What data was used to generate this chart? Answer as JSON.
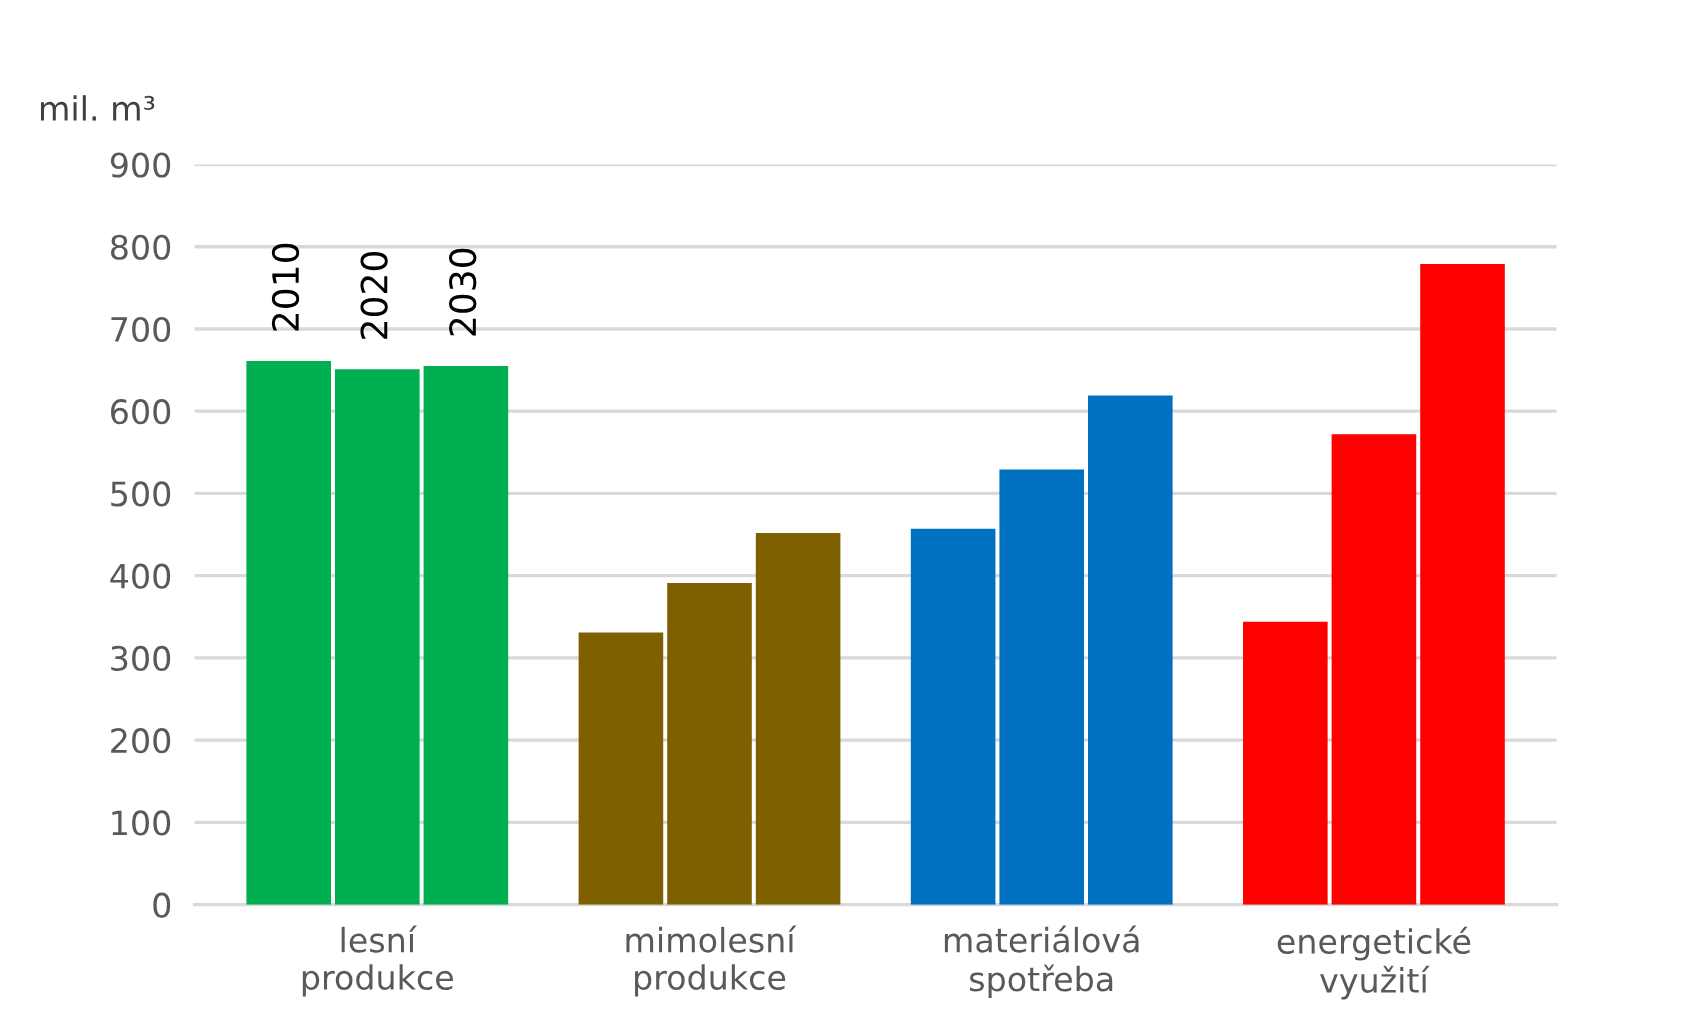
{
  "chart_data": {
    "type": "bar",
    "ylabel": "mil. m³",
    "categories": [
      "lesní produkce",
      "mimolesní produkce",
      "materiálová spotřeba",
      "energetické využití"
    ],
    "series": [
      {
        "name": "2010",
        "colors": [
          "#00b050",
          "#7f6000",
          "#0070c0",
          "#ff0000"
        ],
        "values": [
          661,
          331,
          457,
          344
        ]
      },
      {
        "name": "2020",
        "colors": [
          "#00b050",
          "#7f6000",
          "#0070c0",
          "#ff0000"
        ],
        "values": [
          651,
          391,
          529,
          572
        ]
      },
      {
        "name": "2030",
        "colors": [
          "#00b050",
          "#7f6000",
          "#0070c0",
          "#ff0000"
        ],
        "values": [
          655,
          452,
          619,
          779
        ]
      }
    ],
    "ylim": [
      0,
      900
    ],
    "yticks": [
      0,
      100,
      200,
      300,
      400,
      500,
      600,
      700,
      800,
      900
    ],
    "grid": "y",
    "legend": false
  }
}
